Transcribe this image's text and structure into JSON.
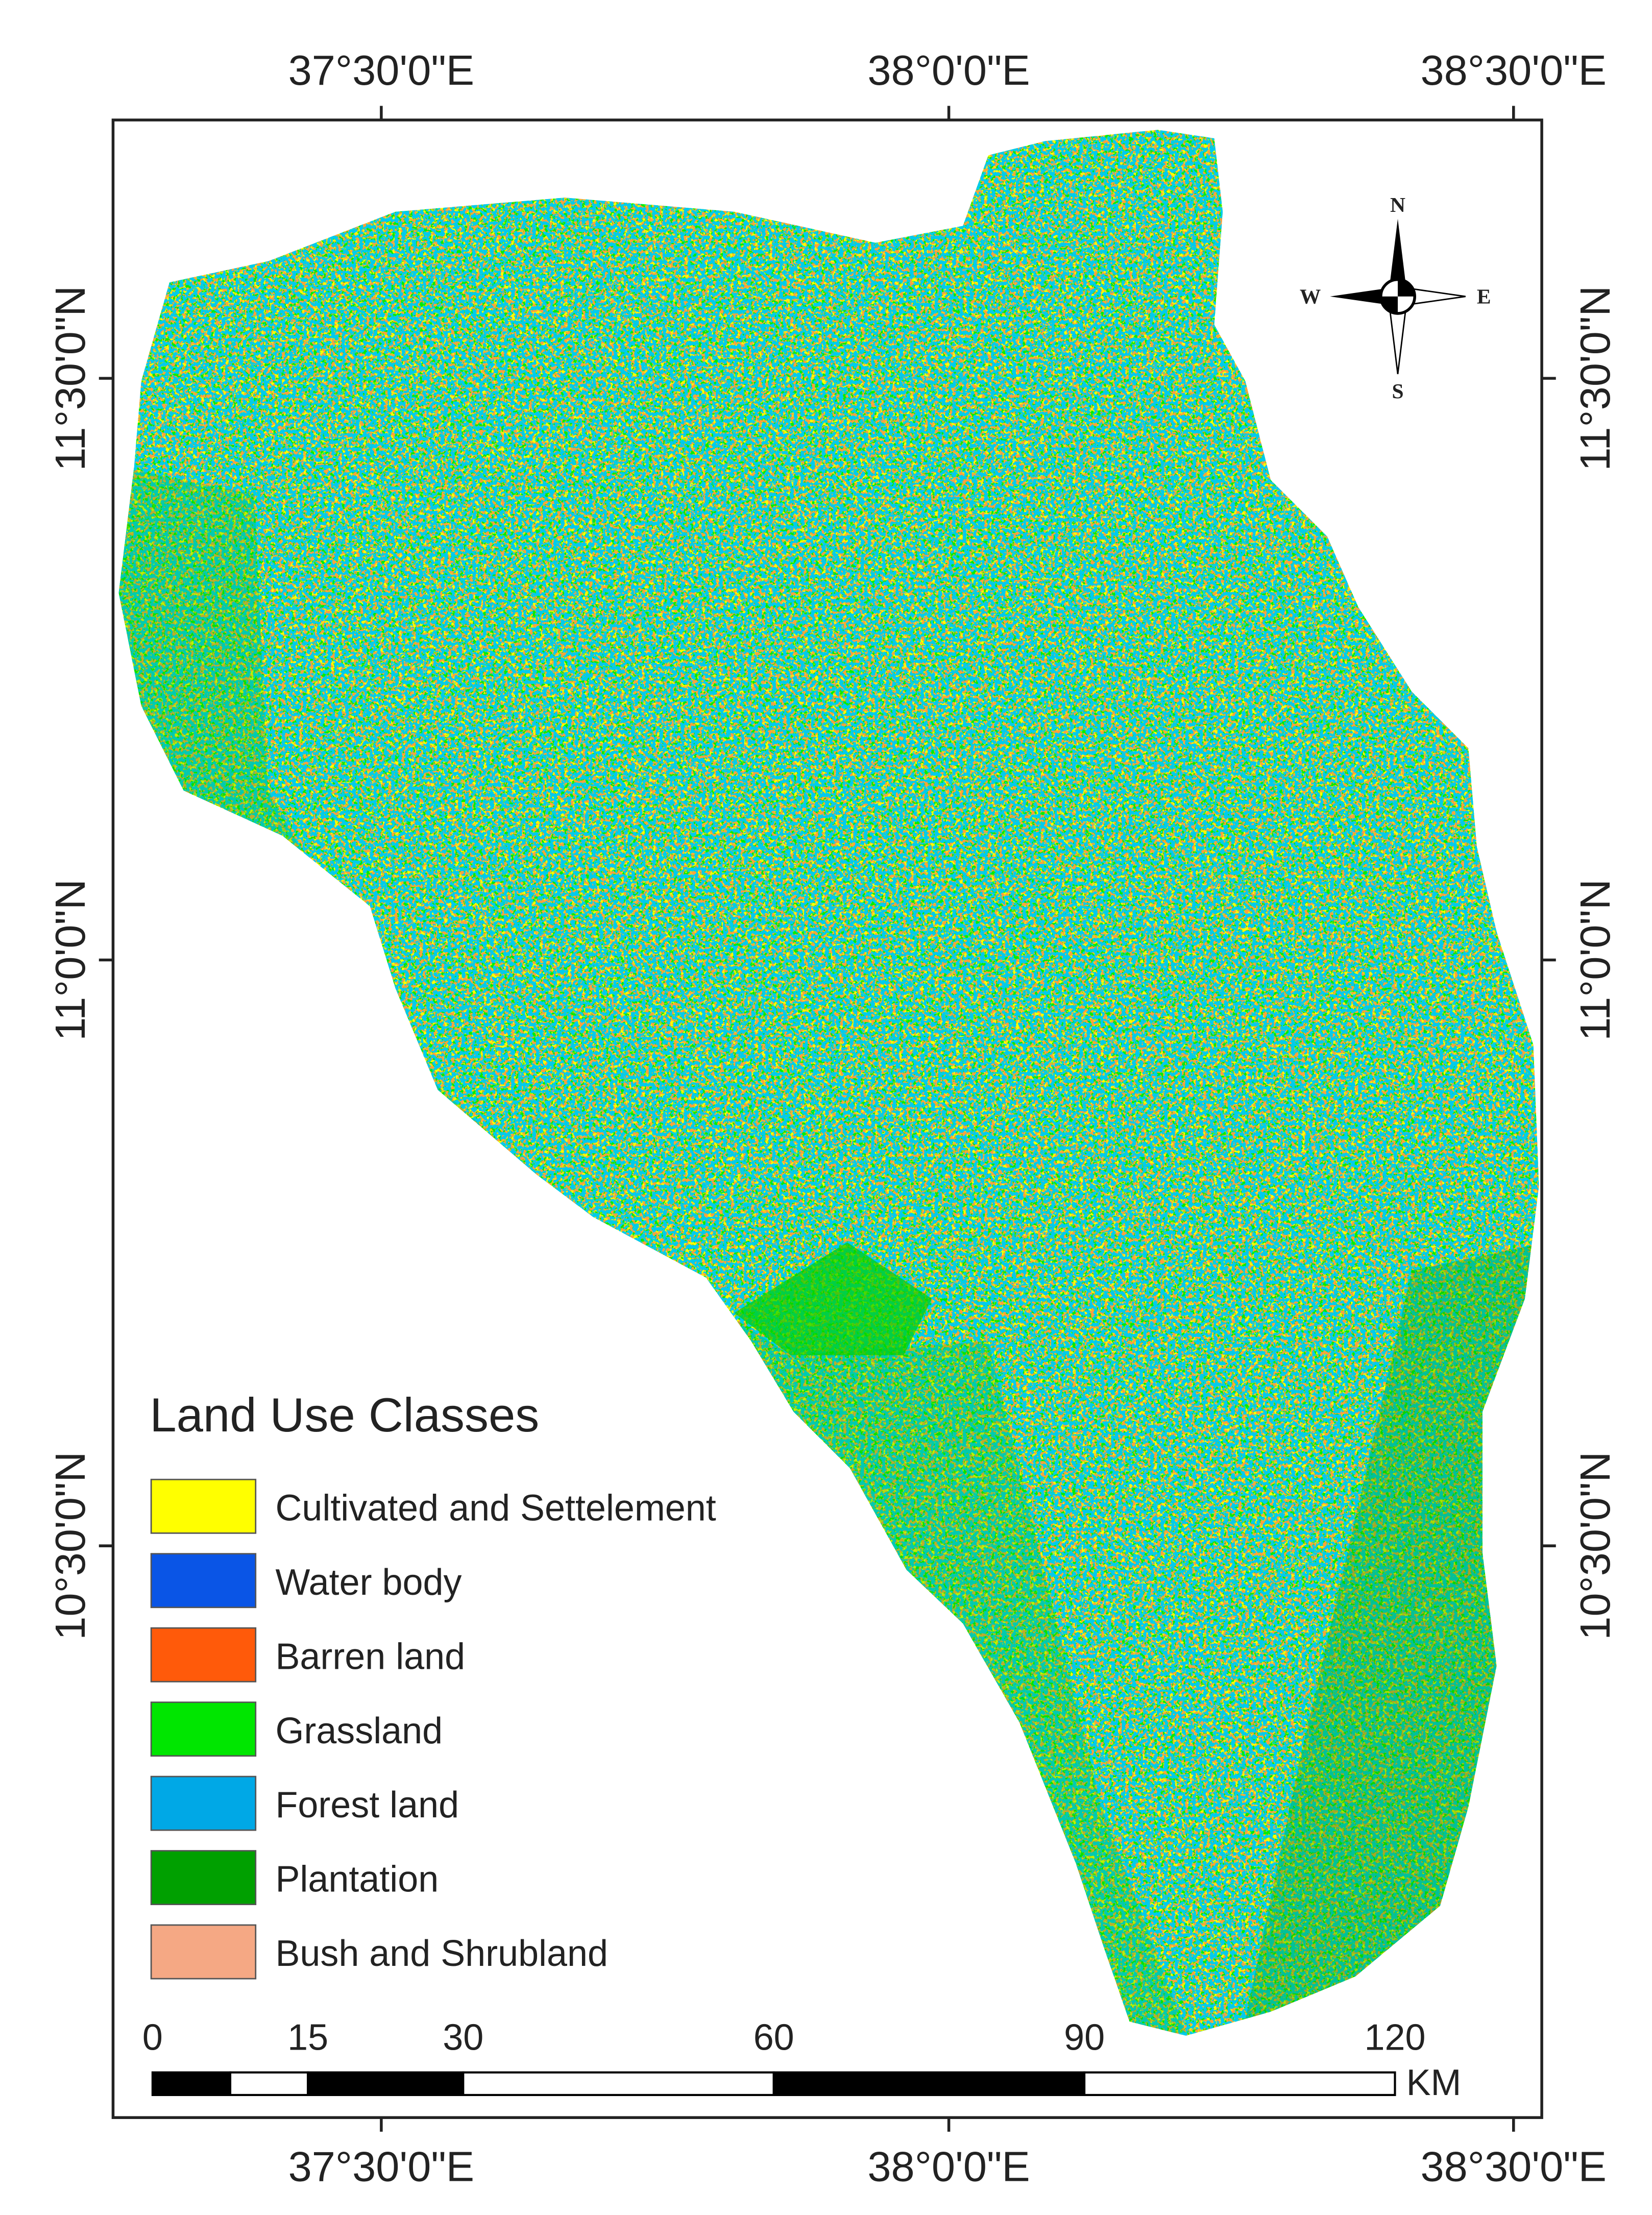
{
  "map": {
    "top_longitude_labels": [
      "37°30'0\"E",
      "38°0'0\"E",
      "38°30'0\"E"
    ],
    "bottom_longitude_labels": [
      "37°30'0\"E",
      "38°0'0\"E",
      "38°30'0\"E"
    ],
    "left_latitude_labels": [
      "11°30'0\"N",
      "11°0'0\"N",
      "10°30'0\"N"
    ],
    "right_latitude_labels": [
      "11°30'0\"N",
      "11°0'0\"N",
      "10°30'0\"N"
    ],
    "compass": {
      "north": "N",
      "south": "S",
      "east": "E",
      "west": "W"
    },
    "legend": {
      "title": "Land Use Classes",
      "items": [
        {
          "name": "Cultivated and Settelement",
          "color": "#ffff00"
        },
        {
          "name": "Water body",
          "color": "#0a55e6"
        },
        {
          "name": "Barren land",
          "color": "#ff5a0a"
        },
        {
          "name": "Grassland",
          "color": "#00e600"
        },
        {
          "name": "Forest land",
          "color": "#00a8e6"
        },
        {
          "name": "Plantation",
          "color": "#00a000"
        },
        {
          "name": "Bush and Shrubland",
          "color": "#f5a884"
        }
      ]
    },
    "scale_bar": {
      "ticks": [
        0,
        15,
        30,
        60,
        90,
        120
      ],
      "unit": "KM"
    }
  }
}
